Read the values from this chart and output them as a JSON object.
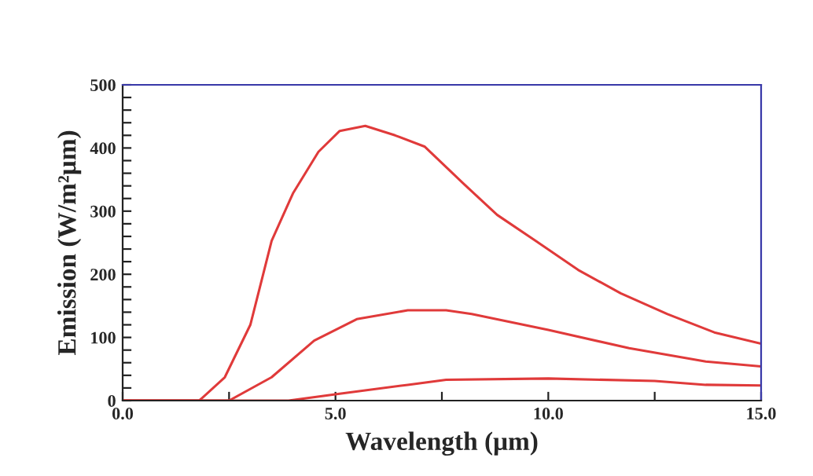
{
  "chart_data": {
    "type": "line",
    "xlabel": "Wavelength (μm)",
    "ylabel": "Emission (W/m²μm)",
    "xlim": [
      0,
      15
    ],
    "ylim": [
      0,
      500
    ],
    "xticks": [
      {
        "value": 0,
        "label": "0.0"
      },
      {
        "value": 2.5,
        "label": null
      },
      {
        "value": 5,
        "label": "5.0"
      },
      {
        "value": 7.5,
        "label": null
      },
      {
        "value": 10,
        "label": "10.0"
      },
      {
        "value": 12.5,
        "label": null
      },
      {
        "value": 15,
        "label": "15.0"
      }
    ],
    "yticks": [
      0,
      {
        "value": 20,
        "label": null
      },
      {
        "value": 40,
        "label": null
      },
      {
        "value": 60,
        "label": null
      },
      {
        "value": 80,
        "label": null
      },
      100,
      {
        "value": 120,
        "label": null
      },
      {
        "value": 140,
        "label": null
      },
      {
        "value": 160,
        "label": null
      },
      {
        "value": 180,
        "label": null
      },
      200,
      {
        "value": 220,
        "label": null
      },
      {
        "value": 240,
        "label": null
      },
      {
        "value": 260,
        "label": null
      },
      {
        "value": 280,
        "label": null
      },
      300,
      {
        "value": 320,
        "label": null
      },
      {
        "value": 340,
        "label": null
      },
      {
        "value": 360,
        "label": null
      },
      {
        "value": 380,
        "label": null
      },
      400,
      {
        "value": 420,
        "label": null
      },
      {
        "value": 440,
        "label": null
      },
      {
        "value": 460,
        "label": null
      },
      {
        "value": 480,
        "label": null
      },
      500
    ],
    "grid": false,
    "legend": false,
    "marker": "none",
    "line_style": "solid",
    "series": [
      {
        "color": "#e03a3a",
        "x": [
          0,
          1.8,
          2.4,
          3.0,
          3.5,
          4.0,
          4.6,
          5.1,
          5.7,
          6.4,
          7.1,
          8.0,
          8.8,
          9.7,
          10.7,
          11.7,
          12.8,
          13.9,
          15
        ],
        "values": [
          0,
          0,
          37,
          120,
          253,
          328,
          394,
          427,
          435,
          420,
          402,
          344,
          294,
          253,
          207,
          170,
          137,
          108,
          90
        ]
      },
      {
        "color": "#e03a3a",
        "x": [
          0,
          2.5,
          3.5,
          4.5,
          5.5,
          6.7,
          7.6,
          8.2,
          10.0,
          11.9,
          13.7,
          15
        ],
        "values": [
          0,
          0,
          37,
          95,
          129,
          143,
          143,
          137,
          112,
          83,
          62,
          54
        ]
      },
      {
        "color": "#e03a3a",
        "x": [
          0,
          3.9,
          5.1,
          6.7,
          7.6,
          10.0,
          12.5,
          13.7,
          15
        ],
        "values": [
          0,
          0,
          11,
          25,
          33,
          35,
          31,
          25,
          24
        ]
      }
    ]
  }
}
